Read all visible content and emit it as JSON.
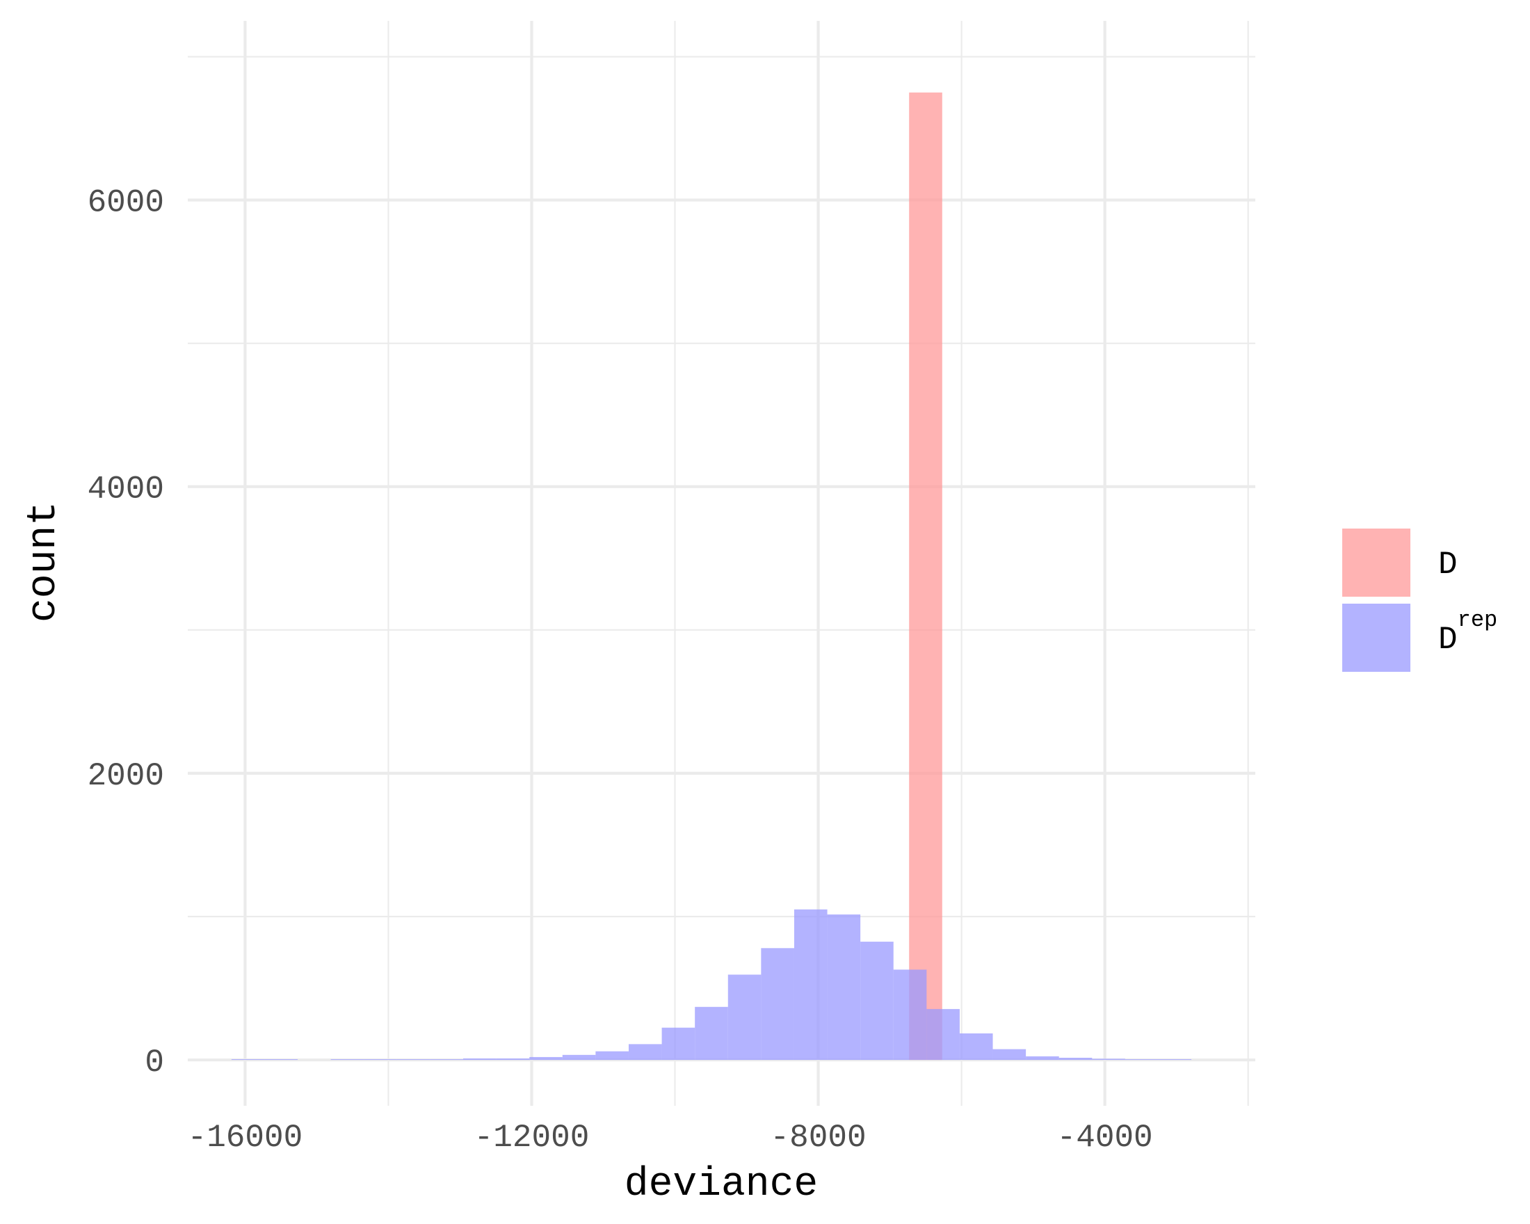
{
  "chart_data": {
    "type": "bar",
    "xlabel": "deviance",
    "ylabel": "count",
    "xlim": [
      -16800,
      -1900
    ],
    "ylim": [
      -320,
      7250
    ],
    "x_ticks": [
      -16000,
      -12000,
      -8000,
      -4000
    ],
    "x_tick_labels": [
      "-16000",
      "-12000",
      "-8000",
      "-4000"
    ],
    "y_ticks": [
      0,
      2000,
      4000,
      6000
    ],
    "y_tick_labels": [
      "0",
      "2000",
      "4000",
      "6000"
    ],
    "grid": true,
    "legend_position": "right",
    "series": [
      {
        "name": "D",
        "color": "#ff9999",
        "opacity": 0.75,
        "bins": [
          {
            "x0": -6732,
            "x1": -6270,
            "count": 6750
          }
        ]
      },
      {
        "name": "Drep",
        "color": "#9999ff",
        "opacity": 0.75,
        "bins": [
          {
            "x0": -16190,
            "x1": -15728,
            "count": 5
          },
          {
            "x0": -15728,
            "x1": -15266,
            "count": 5
          },
          {
            "x0": -14804,
            "x1": -14342,
            "count": 5
          },
          {
            "x0": -14342,
            "x1": -13880,
            "count": 5
          },
          {
            "x0": -13880,
            "x1": -13418,
            "count": 5
          },
          {
            "x0": -13418,
            "x1": -12956,
            "count": 5
          },
          {
            "x0": -12956,
            "x1": -12494,
            "count": 10
          },
          {
            "x0": -12494,
            "x1": -12032,
            "count": 10
          },
          {
            "x0": -12032,
            "x1": -11570,
            "count": 20
          },
          {
            "x0": -11570,
            "x1": -11108,
            "count": 35
          },
          {
            "x0": -11108,
            "x1": -10646,
            "count": 60
          },
          {
            "x0": -10646,
            "x1": -10184,
            "count": 110
          },
          {
            "x0": -10184,
            "x1": -9722,
            "count": 225
          },
          {
            "x0": -9722,
            "x1": -9260,
            "count": 370
          },
          {
            "x0": -9260,
            "x1": -8798,
            "count": 595
          },
          {
            "x0": -8798,
            "x1": -8336,
            "count": 780
          },
          {
            "x0": -8336,
            "x1": -7874,
            "count": 1050
          },
          {
            "x0": -7874,
            "x1": -7412,
            "count": 1015
          },
          {
            "x0": -7412,
            "x1": -6950,
            "count": 825
          },
          {
            "x0": -6950,
            "x1": -6488,
            "count": 630
          },
          {
            "x0": -6488,
            "x1": -6026,
            "count": 355
          },
          {
            "x0": -6026,
            "x1": -5564,
            "count": 185
          },
          {
            "x0": -5564,
            "x1": -5102,
            "count": 75
          },
          {
            "x0": -5102,
            "x1": -4640,
            "count": 25
          },
          {
            "x0": -4640,
            "x1": -4178,
            "count": 15
          },
          {
            "x0": -4178,
            "x1": -3716,
            "count": 8
          },
          {
            "x0": -3716,
            "x1": -3254,
            "count": 5
          },
          {
            "x0": -3254,
            "x1": -2792,
            "count": 5
          }
        ]
      }
    ]
  },
  "legend": {
    "items": [
      {
        "label": "D",
        "sup": "",
        "color": "#ff9999"
      },
      {
        "label": "D",
        "sup": "rep",
        "color": "#9999ff"
      }
    ]
  }
}
